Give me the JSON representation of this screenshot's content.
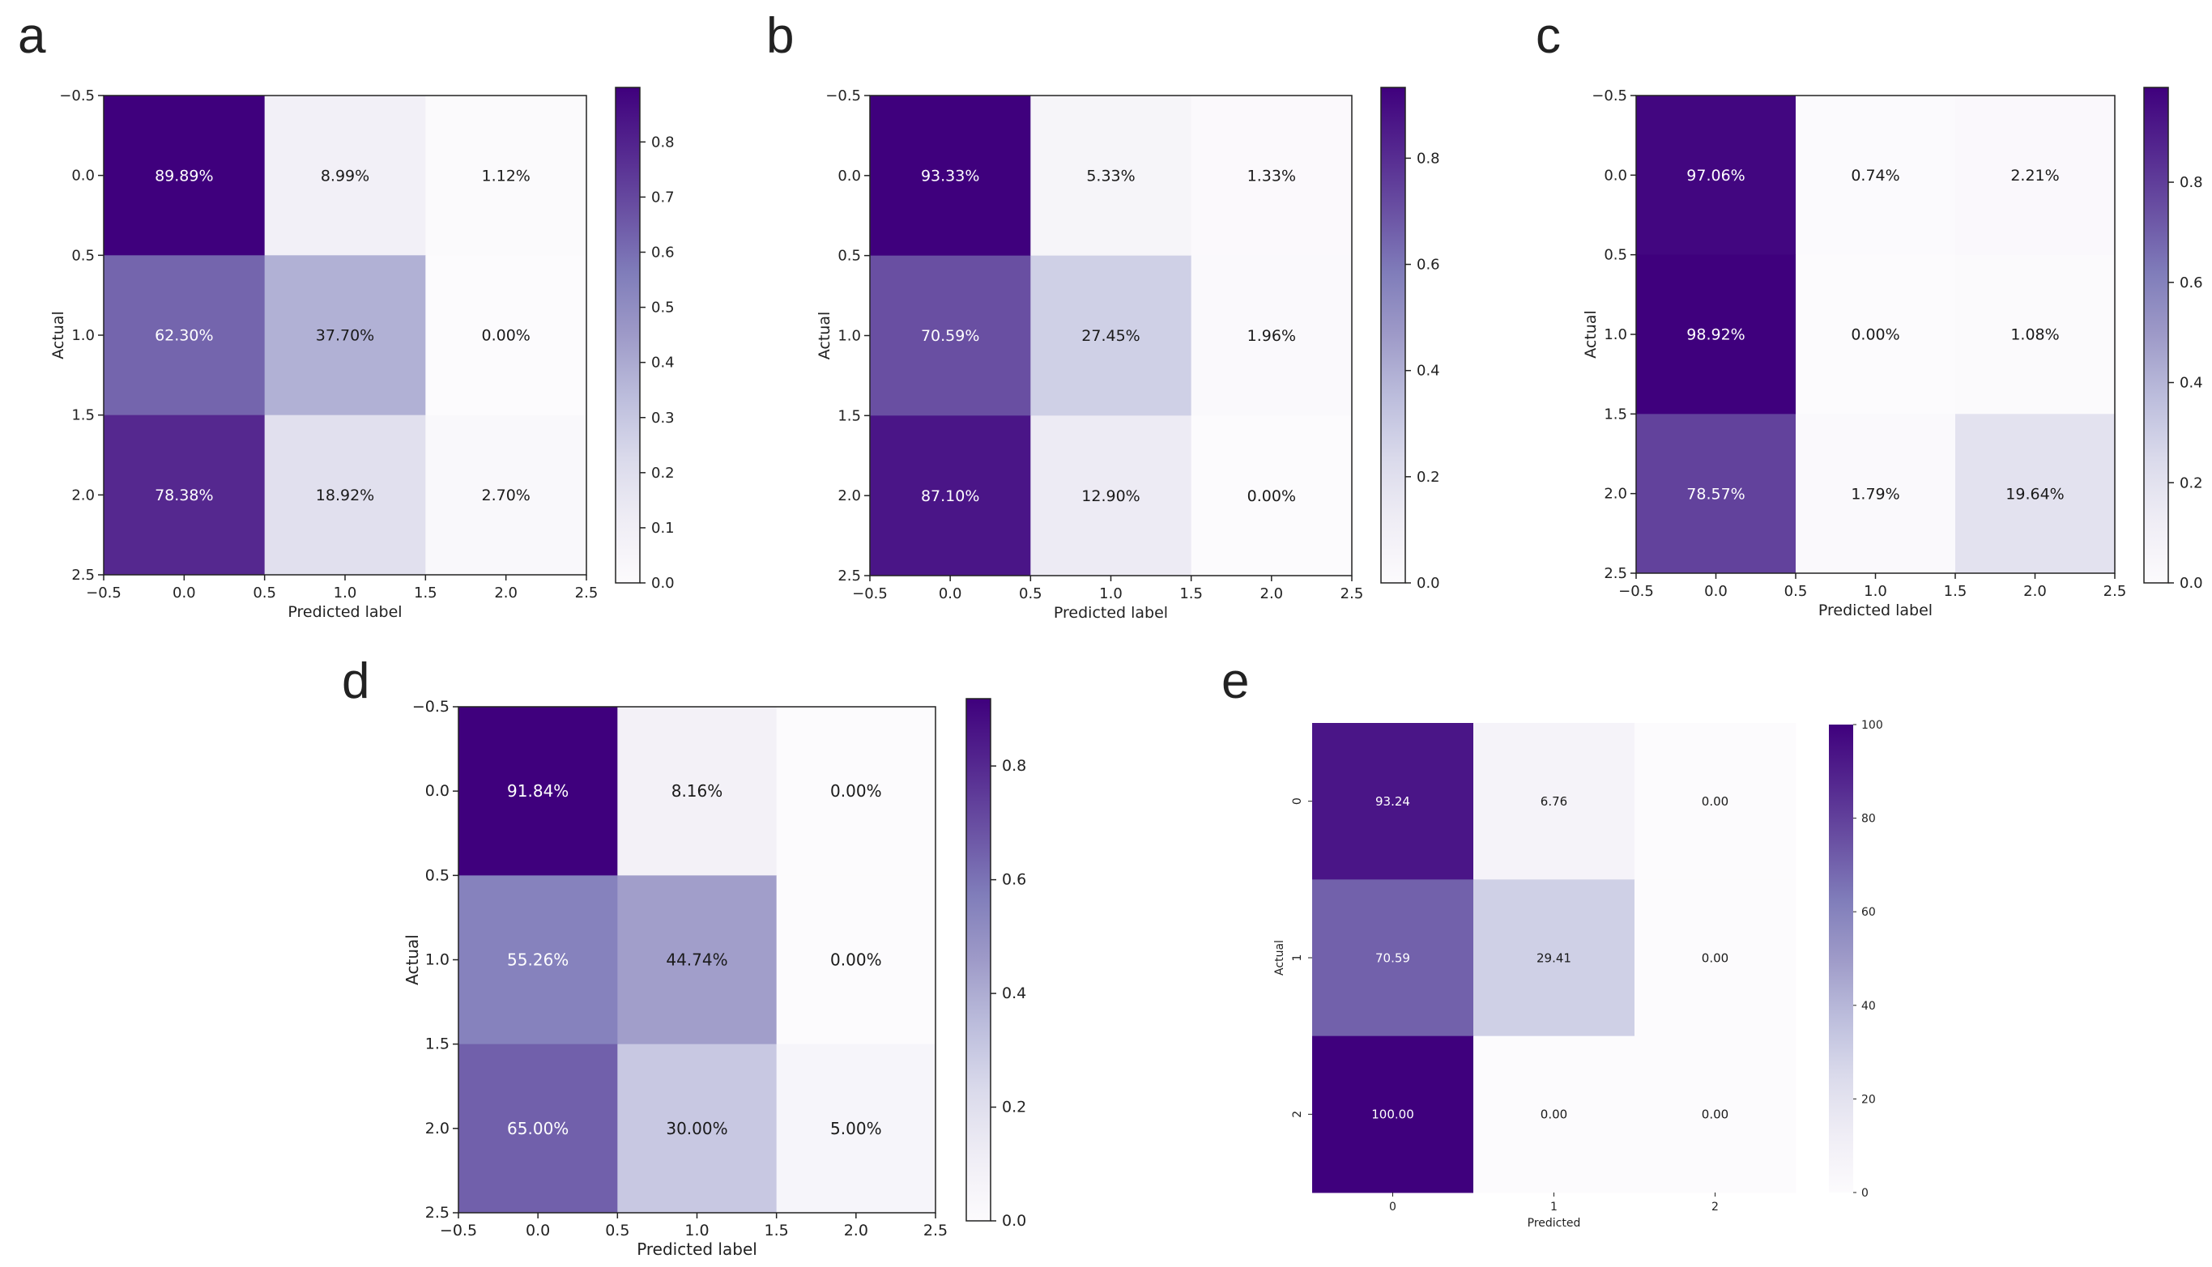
{
  "figure": {
    "description_labels": [
      "a",
      "b",
      "c",
      "d",
      "e"
    ]
  },
  "chart_data": [
    {
      "panel": "a",
      "type": "heatmap",
      "xlabel": "Predicted label",
      "ylabel": "Actual",
      "x_ticks": [
        "−0.5",
        "0.0",
        "0.5",
        "1.0",
        "1.5",
        "2.0",
        "2.5"
      ],
      "y_ticks": [
        "−0.5",
        "0.0",
        "0.5",
        "1.0",
        "1.5",
        "2.0",
        "2.5"
      ],
      "x_range": [
        -0.5,
        2.5
      ],
      "y_range": [
        -0.5,
        2.5
      ],
      "values": [
        [
          0.8989,
          0.0899,
          0.0112
        ],
        [
          0.623,
          0.377,
          0.0
        ],
        [
          0.7838,
          0.1892,
          0.027
        ]
      ],
      "cell_labels": [
        [
          "89.89%",
          "8.99%",
          "1.12%"
        ],
        [
          "62.30%",
          "37.70%",
          "0.00%"
        ],
        [
          "78.38%",
          "18.92%",
          "2.70%"
        ]
      ],
      "colorbar": {
        "min": 0,
        "max": 0.8989,
        "ticks": [
          0,
          0.1,
          0.2,
          0.3,
          0.4,
          0.5,
          0.6,
          0.7,
          0.8
        ],
        "tick_labels": [
          "0.0",
          "0.1",
          "0.2",
          "0.3",
          "0.4",
          "0.5",
          "0.6",
          "0.7",
          "0.8"
        ]
      }
    },
    {
      "panel": "b",
      "type": "heatmap",
      "xlabel": "Predicted label",
      "ylabel": "Actual",
      "x_ticks": [
        "−0.5",
        "0.0",
        "0.5",
        "1.0",
        "1.5",
        "2.0",
        "2.5"
      ],
      "y_ticks": [
        "−0.5",
        "0.0",
        "0.5",
        "1.0",
        "1.5",
        "2.0",
        "2.5"
      ],
      "x_range": [
        -0.5,
        2.5
      ],
      "y_range": [
        -0.5,
        2.5
      ],
      "values": [
        [
          0.9333,
          0.0533,
          0.0133
        ],
        [
          0.7059,
          0.2745,
          0.0196
        ],
        [
          0.871,
          0.129,
          0.0
        ]
      ],
      "cell_labels": [
        [
          "93.33%",
          "5.33%",
          "1.33%"
        ],
        [
          "70.59%",
          "27.45%",
          "1.96%"
        ],
        [
          "87.10%",
          "12.90%",
          "0.00%"
        ]
      ],
      "colorbar": {
        "min": 0,
        "max": 0.9333,
        "ticks": [
          0,
          0.2,
          0.4,
          0.6,
          0.8
        ],
        "tick_labels": [
          "0.0",
          "0.2",
          "0.4",
          "0.6",
          "0.8"
        ]
      }
    },
    {
      "panel": "c",
      "type": "heatmap",
      "xlabel": "Predicted label",
      "ylabel": "Actual",
      "x_ticks": [
        "−0.5",
        "0.0",
        "0.5",
        "1.0",
        "1.5",
        "2.0",
        "2.5"
      ],
      "y_ticks": [
        "−0.5",
        "0.0",
        "0.5",
        "1.0",
        "1.5",
        "2.0",
        "2.5"
      ],
      "x_range": [
        -0.5,
        2.5
      ],
      "y_range": [
        -0.5,
        2.5
      ],
      "values": [
        [
          0.9706,
          0.0074,
          0.0221
        ],
        [
          0.9892,
          0.0,
          0.0108
        ],
        [
          0.7857,
          0.0179,
          0.1964
        ]
      ],
      "cell_labels": [
        [
          "97.06%",
          "0.74%",
          "2.21%"
        ],
        [
          "98.92%",
          "0.00%",
          "1.08%"
        ],
        [
          "78.57%",
          "1.79%",
          "19.64%"
        ]
      ],
      "colorbar": {
        "min": 0,
        "max": 0.9892,
        "ticks": [
          0,
          0.2,
          0.4,
          0.6,
          0.8
        ],
        "tick_labels": [
          "0.0",
          "0.2",
          "0.4",
          "0.6",
          "0.8"
        ]
      }
    },
    {
      "panel": "d",
      "type": "heatmap",
      "xlabel": "Predicted label",
      "ylabel": "Actual",
      "x_ticks": [
        "−0.5",
        "0.0",
        "0.5",
        "1.0",
        "1.5",
        "2.0",
        "2.5"
      ],
      "y_ticks": [
        "−0.5",
        "0.0",
        "0.5",
        "1.0",
        "1.5",
        "2.0",
        "2.5"
      ],
      "x_range": [
        -0.5,
        2.5
      ],
      "y_range": [
        -0.5,
        2.5
      ],
      "values": [
        [
          0.9184,
          0.0816,
          0.0
        ],
        [
          0.5526,
          0.4474,
          0.0
        ],
        [
          0.65,
          0.3,
          0.05
        ]
      ],
      "cell_labels": [
        [
          "91.84%",
          "8.16%",
          "0.00%"
        ],
        [
          "55.26%",
          "44.74%",
          "0.00%"
        ],
        [
          "65.00%",
          "30.00%",
          "5.00%"
        ]
      ],
      "colorbar": {
        "min": 0,
        "max": 0.9184,
        "ticks": [
          0,
          0.2,
          0.4,
          0.6,
          0.8
        ],
        "tick_labels": [
          "0.0",
          "0.2",
          "0.4",
          "0.6",
          "0.8"
        ]
      }
    },
    {
      "panel": "e",
      "type": "heatmap",
      "xlabel": "Predicted",
      "ylabel": "Actual",
      "x_tick_labels": [
        "0",
        "1",
        "2"
      ],
      "y_tick_labels": [
        "0",
        "1",
        "2"
      ],
      "values": [
        [
          93.24,
          6.76,
          0.0
        ],
        [
          70.59,
          29.41,
          0.0
        ],
        [
          100.0,
          0.0,
          0.0
        ]
      ],
      "cell_labels": [
        [
          "93.24",
          "6.76",
          "0.00"
        ],
        [
          "70.59",
          "29.41",
          "0.00"
        ],
        [
          "100.00",
          "0.00",
          "0.00"
        ]
      ],
      "colorbar": {
        "min": 0,
        "max": 100,
        "ticks": [
          0,
          20,
          40,
          60,
          80,
          100
        ],
        "tick_labels": [
          "0",
          "20",
          "40",
          "60",
          "80",
          "100"
        ]
      }
    }
  ],
  "colors": {
    "cmap_low": "#fcfbfd",
    "cmap_high": "#3f007d",
    "text_light": "#ffffff",
    "text_dark": "#1a1a1a",
    "axis": "#222222"
  }
}
